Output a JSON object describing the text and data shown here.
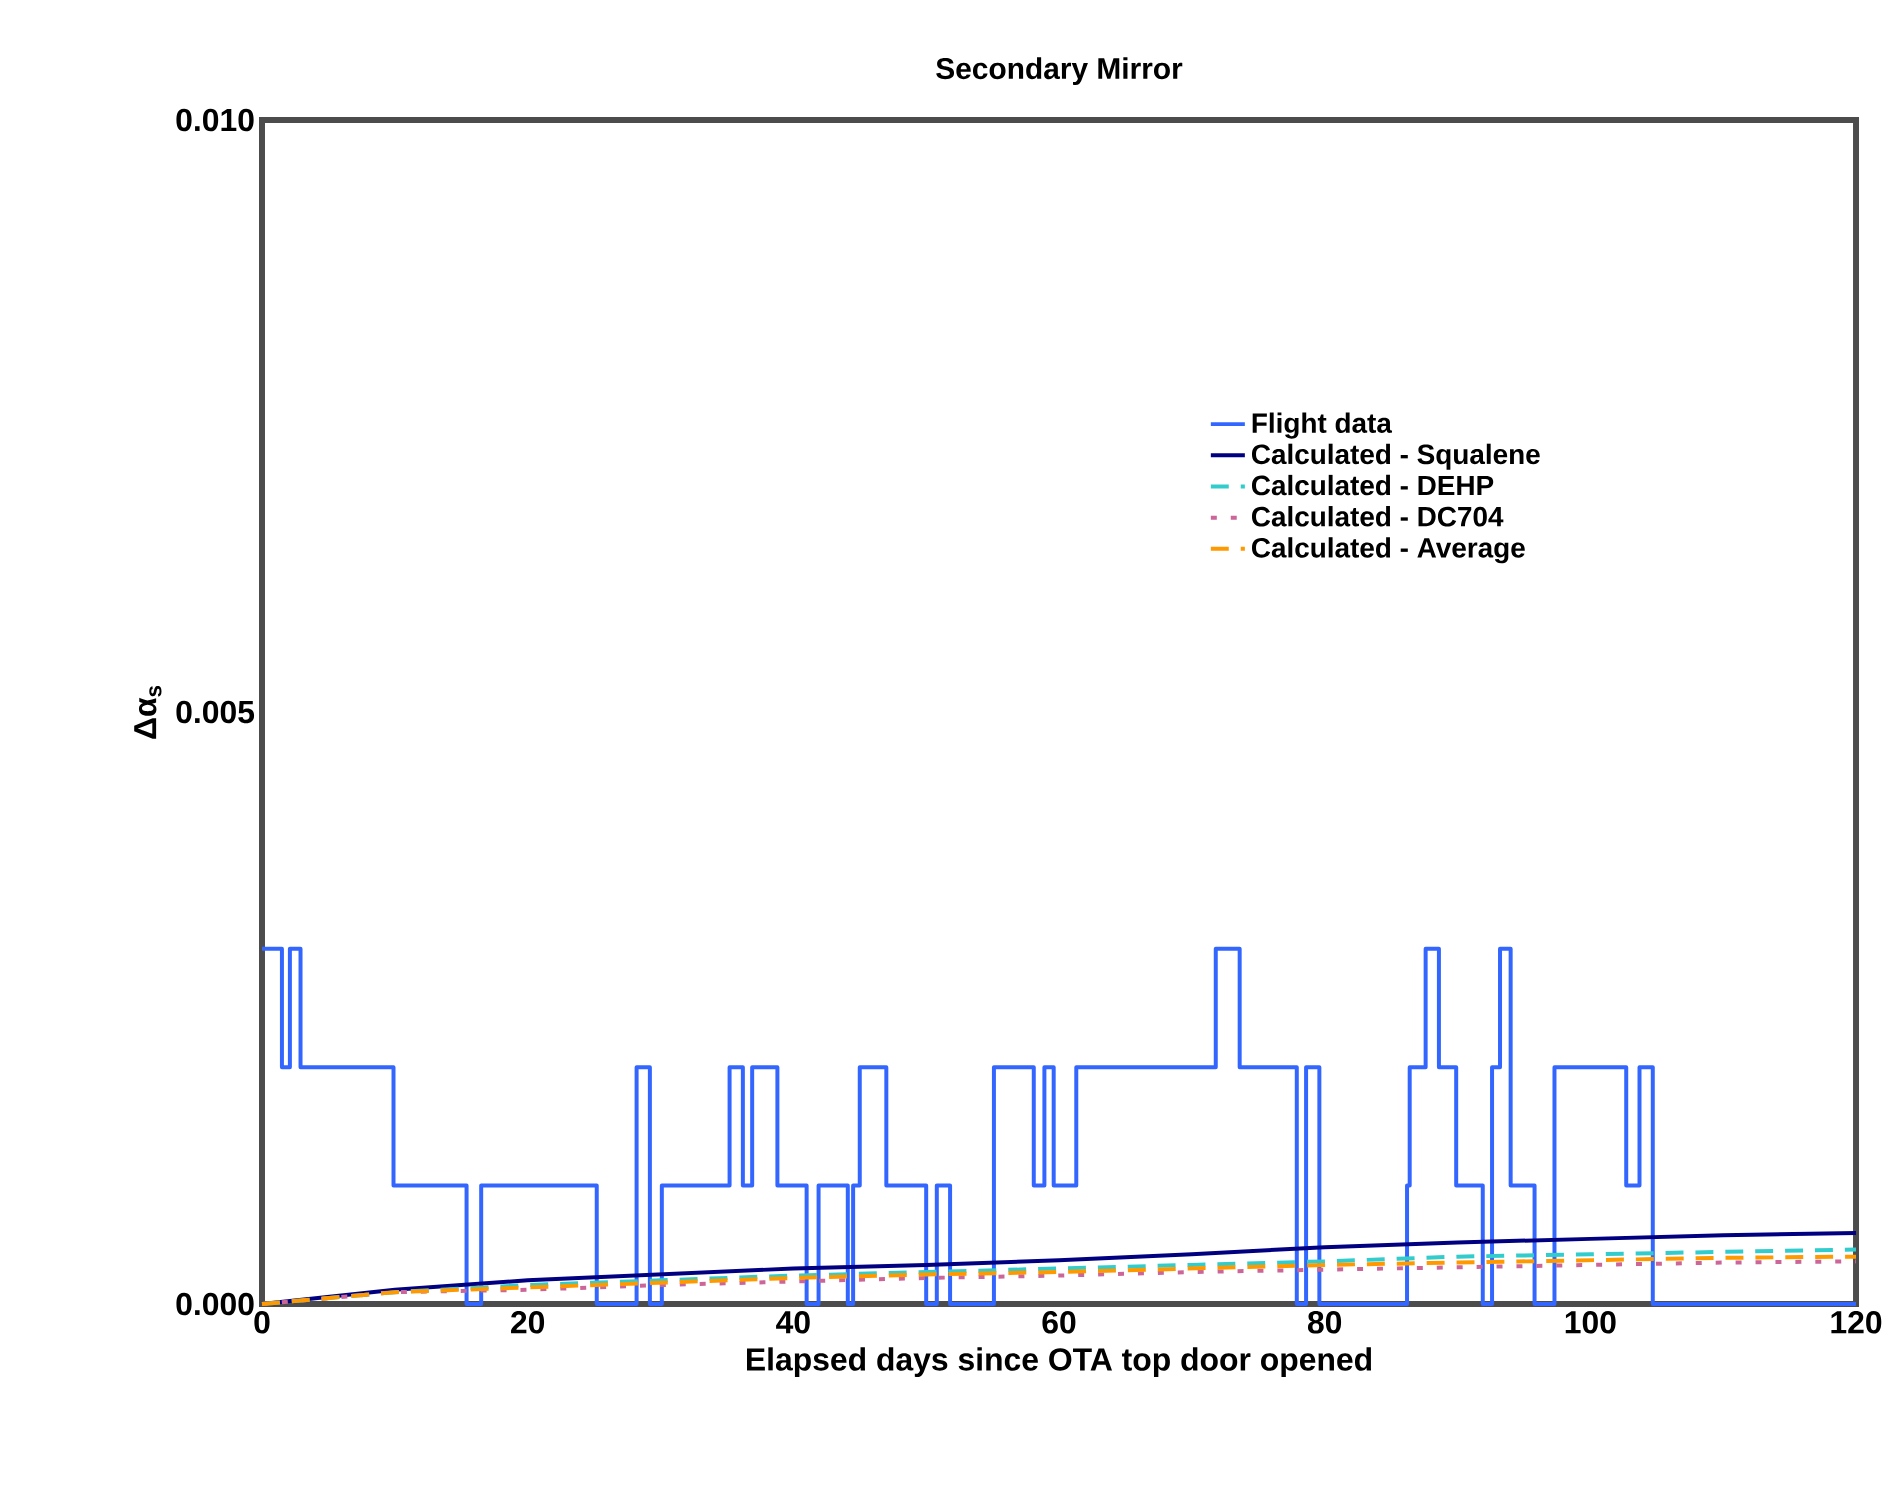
{
  "chart_data": {
    "type": "line",
    "title": "Secondary Mirror",
    "xlabel": "Elapsed days since OTA top door opened",
    "ylabel": "Δα$_{s}$",
    "xlim": [
      0,
      120
    ],
    "xticks": [
      0,
      20,
      40,
      60,
      80,
      100,
      120
    ],
    "ylim": [
      0,
      0.01
    ],
    "yticks": [
      {
        "value": 0,
        "label": "0.000"
      },
      {
        "value": 0.005,
        "label": "0.005"
      },
      {
        "value": 0.01,
        "label": "0.010"
      }
    ],
    "grid": false,
    "legend": "right",
    "series": [
      {
        "name": "Flight data",
        "type": "step",
        "color": "#3366ff",
        "line_style": "solid",
        "x": [
          0,
          1.5,
          2.1,
          2.9,
          9.9,
          15.4,
          16.5,
          25.2,
          28.2,
          29.2,
          30.1,
          35.2,
          36.2,
          36.9,
          38.8,
          41.0,
          41.9,
          44.1,
          44.5,
          45.0,
          47.0,
          50.0,
          50.8,
          51.8,
          55.1,
          58.1,
          58.9,
          59.6,
          61.3,
          71.8,
          73.6,
          77.9,
          78.6,
          79.6,
          86.2,
          86.4,
          87.6,
          88.6,
          89.9,
          91.9,
          92.6,
          93.2,
          94.0,
          95.8,
          97.3,
          102.7,
          103.7,
          104.7,
          120
        ],
        "values": [
          0.003,
          0.002,
          0.003,
          0.002,
          0.001,
          0,
          0.001,
          0,
          0.002,
          0,
          0.001,
          0.002,
          0.001,
          0.002,
          0.001,
          0,
          0.001,
          0,
          0.001,
          0.002,
          0.001,
          0,
          0.001,
          0,
          0.002,
          0.001,
          0.002,
          0.001,
          0.002,
          0.003,
          0.002,
          0,
          0.002,
          0,
          0.001,
          0.002,
          0.003,
          0.002,
          0.001,
          0,
          0.002,
          0.003,
          0.001,
          0,
          0.002,
          0.001,
          0.002,
          0,
          0
        ]
      },
      {
        "name": "Calculated - Squalene",
        "color": "#000080",
        "line_style": "solid",
        "x": [
          0,
          10,
          20,
          30,
          40,
          50,
          60,
          70,
          80,
          90,
          100,
          110,
          120
        ],
        "values": [
          0,
          0.00012,
          0.0002,
          0.00025,
          0.0003,
          0.00033,
          0.00037,
          0.00042,
          0.00048,
          0.00052,
          0.00055,
          0.00058,
          0.0006
        ]
      },
      {
        "name": "Calculated - DEHP",
        "color": "#33cccc",
        "line_style": "dashed",
        "x": [
          0,
          10,
          20,
          30,
          40,
          50,
          60,
          70,
          80,
          90,
          100,
          110,
          120
        ],
        "values": [
          0,
          0.0001,
          0.00016,
          0.0002,
          0.00024,
          0.00027,
          0.0003,
          0.00033,
          0.00036,
          0.0004,
          0.00042,
          0.00044,
          0.00046
        ]
      },
      {
        "name": "Calculated - DC704",
        "color": "#cc6699",
        "line_style": "dotted",
        "x": [
          0,
          10,
          20,
          30,
          40,
          50,
          60,
          70,
          80,
          90,
          100,
          110,
          120
        ],
        "values": [
          0,
          0.0001,
          0.00012,
          0.00016,
          0.00019,
          0.00022,
          0.00024,
          0.00027,
          0.00029,
          0.00031,
          0.00033,
          0.00035,
          0.00036
        ]
      },
      {
        "name": "Calculated - Average",
        "color": "#ff9900",
        "line_style": "dashed",
        "x": [
          0,
          10,
          20,
          30,
          40,
          50,
          60,
          70,
          80,
          90,
          100,
          110,
          120
        ],
        "values": [
          0,
          0.0001,
          0.00014,
          0.00018,
          0.00022,
          0.00025,
          0.00027,
          0.0003,
          0.00033,
          0.00035,
          0.00037,
          0.00039,
          0.0004
        ]
      }
    ]
  }
}
